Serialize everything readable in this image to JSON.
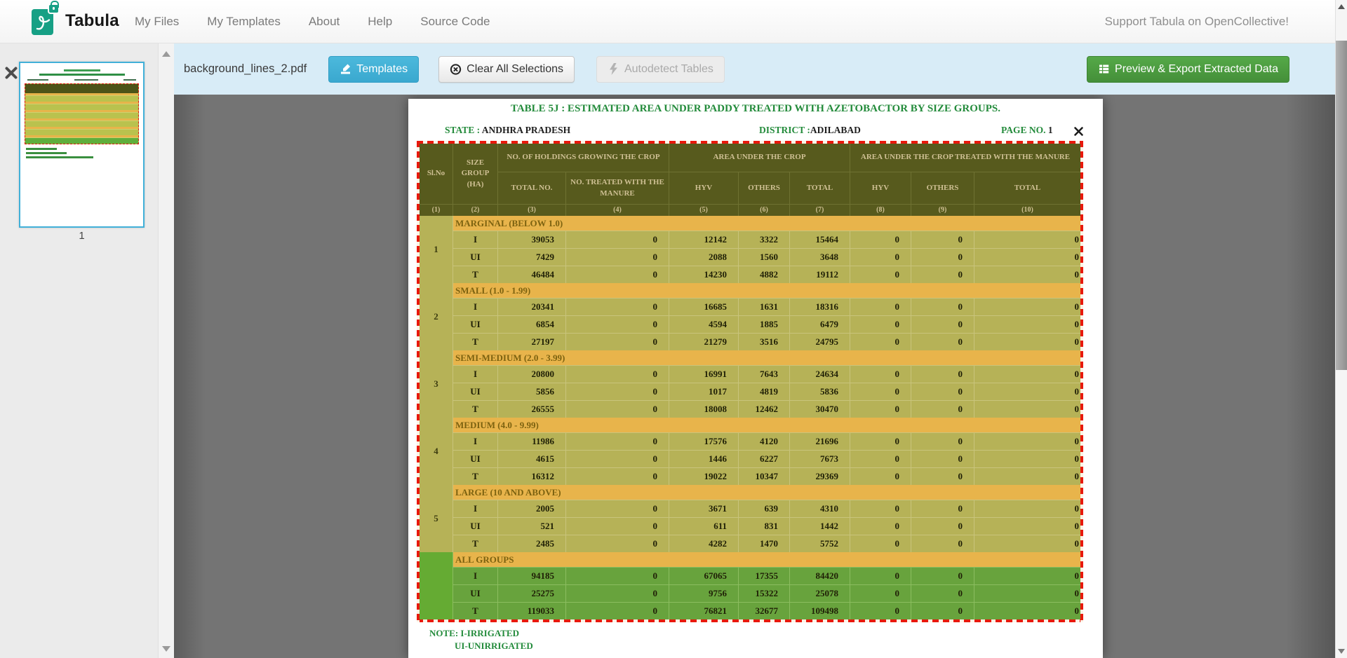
{
  "navbar": {
    "brand": "Tabula",
    "items": [
      "My Files",
      "My Templates",
      "About",
      "Help",
      "Source Code"
    ],
    "support": "Support Tabula on OpenCollective!"
  },
  "toolbar": {
    "filename": "background_lines_2.pdf",
    "templates": "Templates",
    "clear": "Clear All Selections",
    "autodetect": "Autodetect Tables",
    "export": "Preview & Export Extracted Data"
  },
  "sidebar": {
    "page_number": "1"
  },
  "colors": {
    "accent_blue": "#41b1d6",
    "export_green": "#4b9f3e",
    "toolbar_blue": "#d8ecf7",
    "selection_red": "#e8190c",
    "header_olive": "#575a1d",
    "row_yellow": "#b6b257",
    "row_green": "#68a33d",
    "band_orange": "#e8b44b",
    "pdf_green": "#238b3b",
    "logo_green": "#17a085"
  },
  "document": {
    "title": "TABLE 5J : ESTIMATED AREA UNDER PADDY  TREATED WITH AZETOBACTOR BY SIZE GROUPS.",
    "state_label": "STATE : ",
    "state_value": "ANDHRA PRADESH",
    "district_label": "DISTRICT :",
    "district_value": "ADILABAD",
    "page_label": "PAGE NO. ",
    "page_value": "1",
    "notes": [
      "NOTE: I-IRRIGATED",
      "UI-UNIRRIGATED"
    ],
    "table": {
      "header_top": [
        "Sl.No",
        "SIZE GROUP (HA)",
        "NO. OF HOLDINGS GROWING THE CROP",
        "AREA UNDER THE CROP",
        "AREA UNDER THE CROP TREATED WITH THE MANURE"
      ],
      "header_sub": [
        "TOTAL NO.",
        "NO. TREATED WITH THE MANURE",
        "HYV",
        "OTHERS",
        "TOTAL",
        "HYV",
        "OTHERS",
        "TOTAL"
      ],
      "col_numbers": [
        "(1)",
        "(2)",
        "(3)",
        "(4)",
        "(5)",
        "(6)",
        "(7)",
        "(8)",
        "(9)",
        "(10)"
      ],
      "groups": [
        {
          "sl": "1",
          "label": "MARGINAL (BELOW 1.0)",
          "rows": [
            [
              "I",
              "39053",
              "0",
              "12142",
              "3322",
              "15464",
              "0",
              "0",
              "0"
            ],
            [
              "UI",
              "7429",
              "0",
              "2088",
              "1560",
              "3648",
              "0",
              "0",
              "0"
            ],
            [
              "T",
              "46484",
              "0",
              "14230",
              "4882",
              "19112",
              "0",
              "0",
              "0"
            ]
          ]
        },
        {
          "sl": "2",
          "label": "SMALL (1.0 - 1.99)",
          "rows": [
            [
              "I",
              "20341",
              "0",
              "16685",
              "1631",
              "18316",
              "0",
              "0",
              "0"
            ],
            [
              "UI",
              "6854",
              "0",
              "4594",
              "1885",
              "6479",
              "0",
              "0",
              "0"
            ],
            [
              "T",
              "27197",
              "0",
              "21279",
              "3516",
              "24795",
              "0",
              "0",
              "0"
            ]
          ]
        },
        {
          "sl": "3",
          "label": "SEMI-MEDIUM (2.0 - 3.99)",
          "rows": [
            [
              "I",
              "20800",
              "0",
              "16991",
              "7643",
              "24634",
              "0",
              "0",
              "0"
            ],
            [
              "UI",
              "5856",
              "0",
              "1017",
              "4819",
              "5836",
              "0",
              "0",
              "0"
            ],
            [
              "T",
              "26555",
              "0",
              "18008",
              "12462",
              "30470",
              "0",
              "0",
              "0"
            ]
          ]
        },
        {
          "sl": "4",
          "label": "MEDIUM (4.0 - 9.99)",
          "rows": [
            [
              "I",
              "11986",
              "0",
              "17576",
              "4120",
              "21696",
              "0",
              "0",
              "0"
            ],
            [
              "UI",
              "4615",
              "0",
              "1446",
              "6227",
              "7673",
              "0",
              "0",
              "0"
            ],
            [
              "T",
              "16312",
              "0",
              "19022",
              "10347",
              "29369",
              "0",
              "0",
              "0"
            ]
          ]
        },
        {
          "sl": "5",
          "label": "LARGE (10 AND ABOVE)",
          "rows": [
            [
              "I",
              "2005",
              "0",
              "3671",
              "639",
              "4310",
              "0",
              "0",
              "0"
            ],
            [
              "UI",
              "521",
              "0",
              "611",
              "831",
              "1442",
              "0",
              "0",
              "0"
            ],
            [
              "T",
              "2485",
              "0",
              "4282",
              "1470",
              "5752",
              "0",
              "0",
              "0"
            ]
          ]
        },
        {
          "sl": "",
          "label": "ALL GROUPS",
          "green": true,
          "rows": [
            [
              "I",
              "94185",
              "0",
              "67065",
              "17355",
              "84420",
              "0",
              "0",
              "0"
            ],
            [
              "UI",
              "25275",
              "0",
              "9756",
              "15322",
              "25078",
              "0",
              "0",
              "0"
            ],
            [
              "T",
              "119033",
              "0",
              "76821",
              "32677",
              "109498",
              "0",
              "0",
              "0"
            ]
          ]
        }
      ]
    }
  }
}
